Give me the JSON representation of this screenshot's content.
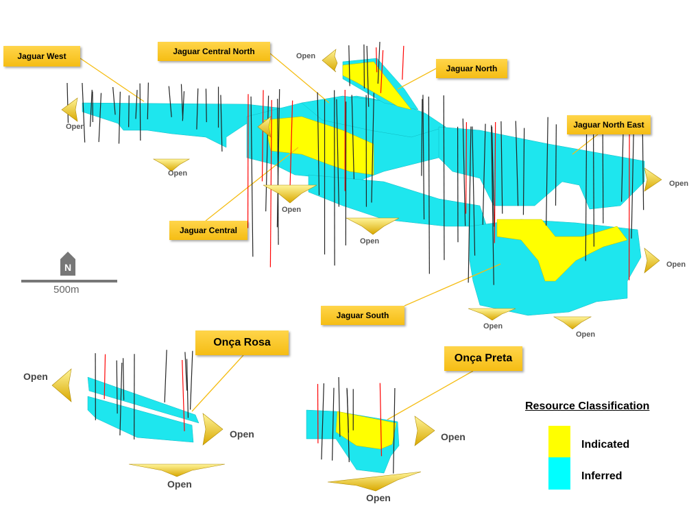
{
  "labels": {
    "jaguar_west": "Jaguar West",
    "jaguar_central_north": "Jaguar Central North",
    "jaguar_north": "Jaguar North",
    "jaguar_north_east": "Jaguar North East",
    "jaguar_central": "Jaguar Central",
    "jaguar_south": "Jaguar South",
    "onca_rosa": "Onça Rosa",
    "onca_preta": "Onça Preta"
  },
  "open_labels": [
    "Open",
    "Open",
    "Open",
    "Open",
    "Open",
    "Open",
    "Open",
    "Open",
    "Open",
    "Open",
    "Open",
    "Open",
    "Open",
    "Open"
  ],
  "north_arrow": "N",
  "scale_bar": "500m",
  "legend": {
    "title": "Resource Classification",
    "items": [
      {
        "label": "Indicated",
        "color": "#ffff00"
      },
      {
        "label": "Inferred",
        "color": "#00ffff"
      }
    ]
  },
  "colors": {
    "inferred": "#00ffff",
    "indicated": "#ffff00",
    "label_bg": "#fcc419",
    "drill": "#222222",
    "assay": "#ff0000"
  }
}
